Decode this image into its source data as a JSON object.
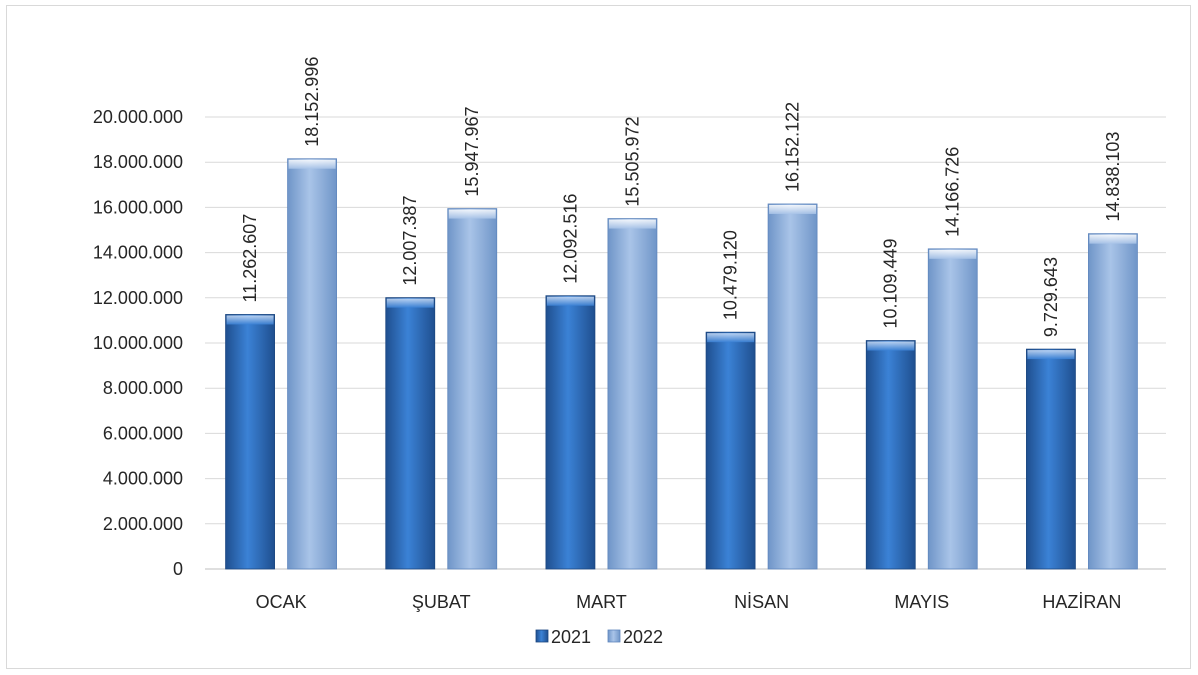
{
  "chart_data": {
    "type": "bar",
    "categories": [
      "OCAK",
      "ŞUBAT",
      "MART",
      "NİSAN",
      "MAYIS",
      "HAZİRAN"
    ],
    "series": [
      {
        "name": "2021",
        "color": "#2e6fc0",
        "values": [
          11262607,
          12007387,
          12092516,
          10479120,
          10109449,
          9729643
        ],
        "labels": [
          "11.262.607",
          "12.007.387",
          "12.092.516",
          "10.479.120",
          "10.109.449",
          "9.729.643"
        ]
      },
      {
        "name": "2022",
        "color": "#8eb1de",
        "values": [
          18152996,
          15947967,
          15505972,
          16152122,
          14166726,
          14838103
        ],
        "labels": [
          "18.152.996",
          "15.947.967",
          "15.505.972",
          "16.152.122",
          "14.166.726",
          "14.838.103"
        ]
      }
    ],
    "ylim": [
      0,
      20000000
    ],
    "yticks": [
      0,
      2000000,
      4000000,
      6000000,
      8000000,
      10000000,
      12000000,
      14000000,
      16000000,
      18000000,
      20000000
    ],
    "ytick_labels": [
      "0",
      "2.000.000",
      "4.000.000",
      "6.000.000",
      "8.000.000",
      "10.000.000",
      "12.000.000",
      "14.000.000",
      "16.000.000",
      "18.000.000",
      "20.000.000"
    ],
    "grid": true,
    "legend_position": "bottom",
    "title": "",
    "xlabel": "",
    "ylabel": ""
  }
}
